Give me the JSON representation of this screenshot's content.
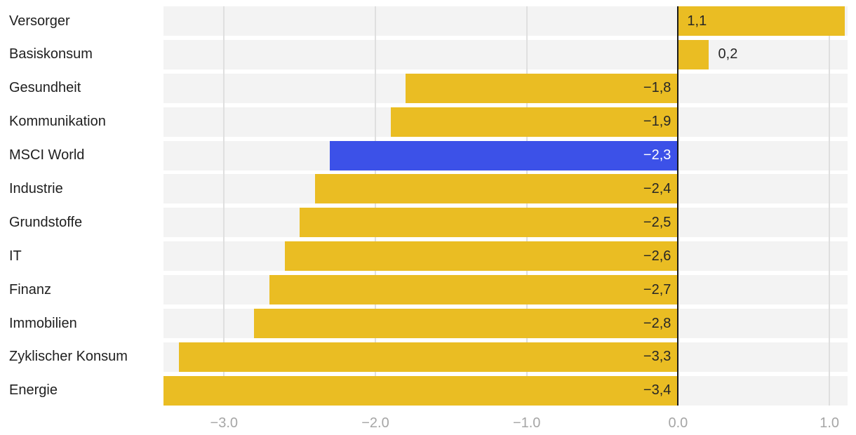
{
  "colors": {
    "bar": "#EABD23",
    "highlight": "#3C51E8",
    "row_bg": "#F3F3F3",
    "gridline": "#DFDFDF",
    "zero_line": "#1A1A1A",
    "category_text": "#1F1F1F",
    "value_text_dark": "#262626",
    "value_text_light": "#FFFFFF",
    "axis_text": "#A6A6A6"
  },
  "chart_data": {
    "type": "bar",
    "orientation": "horizontal",
    "title": "",
    "xlabel": "",
    "ylabel": "",
    "xlim": [
      -3.4,
      1.12
    ],
    "grid": "vertical",
    "legend": "none",
    "highlight_category": "MSCI World",
    "series": [
      {
        "label": "Versorger",
        "value": 1.1,
        "display": "1,1",
        "highlight": false
      },
      {
        "label": "Basiskonsum",
        "value": 0.2,
        "display": "0,2",
        "highlight": false
      },
      {
        "label": "Gesundheit",
        "value": -1.8,
        "display": "−1,8",
        "highlight": false
      },
      {
        "label": "Kommunikation",
        "value": -1.9,
        "display": "−1,9",
        "highlight": false
      },
      {
        "label": "MSCI World",
        "value": -2.3,
        "display": "−2,3",
        "highlight": true
      },
      {
        "label": "Industrie",
        "value": -2.4,
        "display": "−2,4",
        "highlight": false
      },
      {
        "label": "Grundstoffe",
        "value": -2.5,
        "display": "−2,5",
        "highlight": false
      },
      {
        "label": "IT",
        "value": -2.6,
        "display": "−2,6",
        "highlight": false
      },
      {
        "label": "Finanz",
        "value": -2.7,
        "display": "−2,7",
        "highlight": false
      },
      {
        "label": "Immobilien",
        "value": -2.8,
        "display": "−2,8",
        "highlight": false
      },
      {
        "label": "Zyklischer Konsum",
        "value": -3.3,
        "display": "−3,3",
        "highlight": false
      },
      {
        "label": "Energie",
        "value": -3.4,
        "display": "−3,4",
        "highlight": false
      }
    ],
    "x_ticks": [
      {
        "value": -3,
        "label": "−3.0"
      },
      {
        "value": -2,
        "label": "−2.0"
      },
      {
        "value": -1,
        "label": "−1.0"
      },
      {
        "value": 0,
        "label": "0.0"
      },
      {
        "value": 1,
        "label": "1.0"
      }
    ]
  }
}
